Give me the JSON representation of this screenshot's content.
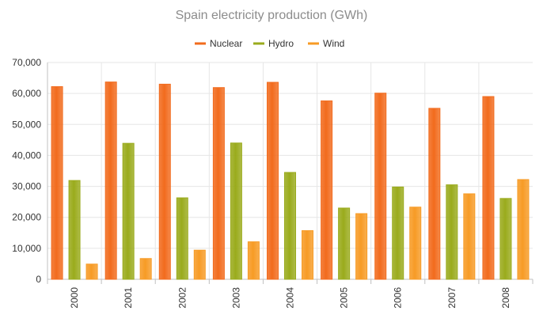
{
  "chart_data": {
    "type": "bar",
    "title": "Spain electricity production (GWh)",
    "xlabel": "",
    "ylabel": "",
    "categories": [
      "2000",
      "2001",
      "2002",
      "2003",
      "2004",
      "2005",
      "2006",
      "2007",
      "2008"
    ],
    "series": [
      {
        "name": "Nuclear",
        "color": "#f26b1d",
        "values": [
          62200,
          63700,
          63000,
          61900,
          63600,
          57600,
          60100,
          55200,
          59000
        ]
      },
      {
        "name": "Hydro",
        "color": "#9aab1c",
        "values": [
          31900,
          43900,
          26300,
          44000,
          34500,
          23000,
          29800,
          30500,
          26100
        ]
      },
      {
        "name": "Wind",
        "color": "#f79b25",
        "values": [
          4900,
          6700,
          9400,
          12100,
          15700,
          21200,
          23300,
          27600,
          32200
        ]
      }
    ],
    "ylim": [
      0,
      70000
    ],
    "yticks": [
      "0",
      "10,000",
      "20,000",
      "30,000",
      "40,000",
      "50,000",
      "60,000",
      "70,000"
    ],
    "grid": true,
    "legend_position": "top-center",
    "colors": {
      "grid": "#e6e6e6",
      "axis": "#c0c0c0",
      "title": "#8c8c8c",
      "text": "#333333"
    }
  }
}
